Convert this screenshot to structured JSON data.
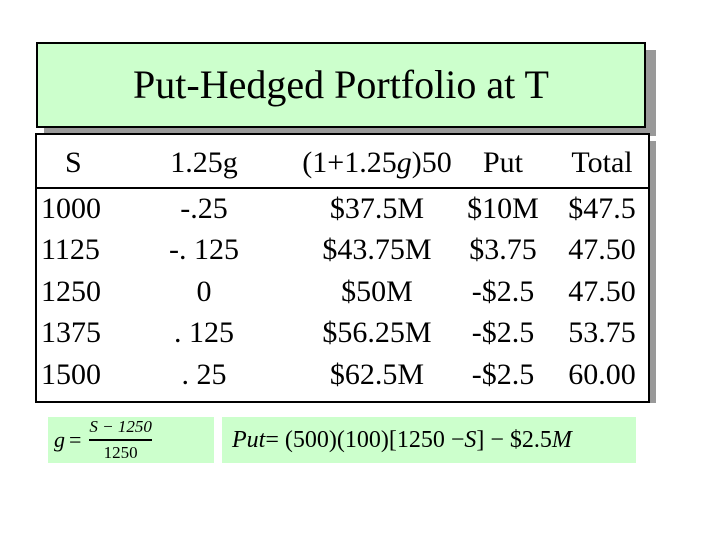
{
  "title": "Put-Hedged Portfolio at T",
  "table": {
    "headers": [
      "S",
      "1.25g",
      "(1+1.25g)50",
      "Put",
      "Total"
    ],
    "header_parts": {
      "open": "(1",
      "plus": "+",
      "coef": "1.25",
      "var": "g",
      "close": ")50"
    },
    "rows": [
      [
        "1000",
        "-.25",
        "$37.5M",
        "$10M",
        "$47.5"
      ],
      [
        "1125",
        "-. 125",
        "$43.75M",
        "$3.75",
        "47.50"
      ],
      [
        "1250",
        "0",
        "$50M",
        "-$2.5",
        "47.50"
      ],
      [
        "1375",
        ". 125",
        "$56.25M",
        "-$2.5",
        "53.75"
      ],
      [
        "1500",
        ". 25",
        "$62.5M",
        "-$2.5",
        "60.00"
      ]
    ]
  },
  "formula_g": {
    "lhs": "g",
    "eq": "=",
    "numerator": "S − 1250",
    "denominator": "1250"
  },
  "formula_put": {
    "lhs": "Put",
    "rhs": " = (500)(100)[1250 − ",
    "var": "S",
    "tail": "] − $2.5",
    "unit": "M"
  }
}
